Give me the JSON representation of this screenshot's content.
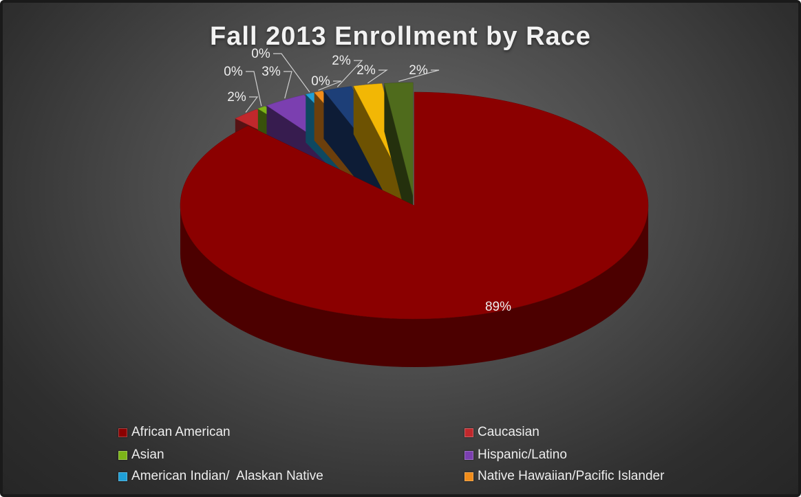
{
  "chart_data": {
    "type": "pie",
    "title": "Fall 2013 Enrollment by Race",
    "categories": [
      "African American",
      "Caucasian",
      "Asian",
      "Hispanic/Latino",
      "American Indian/  Alaskan Native",
      "Native Hawaiian/Pacific Islander",
      "",
      "",
      ""
    ],
    "values": [
      89,
      2,
      0,
      3,
      0,
      0,
      2,
      2,
      2
    ],
    "data_labels": [
      "89%",
      "2%",
      "0%",
      "3%",
      "0%",
      "0%",
      "2%",
      "2%",
      "2%"
    ],
    "colors": [
      "#8b0000",
      "#c0282c",
      "#7cb518",
      "#7b3fb0",
      "#1f9fd6",
      "#f08c1a",
      "#1d3f78",
      "#f2b705",
      "#4f6b1c"
    ],
    "legend": {
      "position": "bottom",
      "entries": [
        "African American",
        "Caucasian",
        "Asian",
        "Hispanic/Latino",
        "American Indian/  Alaskan Native",
        "Native Hawaiian/Pacific Islander"
      ]
    },
    "style": "3d-exploded-pie",
    "background": "#3a3a3a"
  }
}
